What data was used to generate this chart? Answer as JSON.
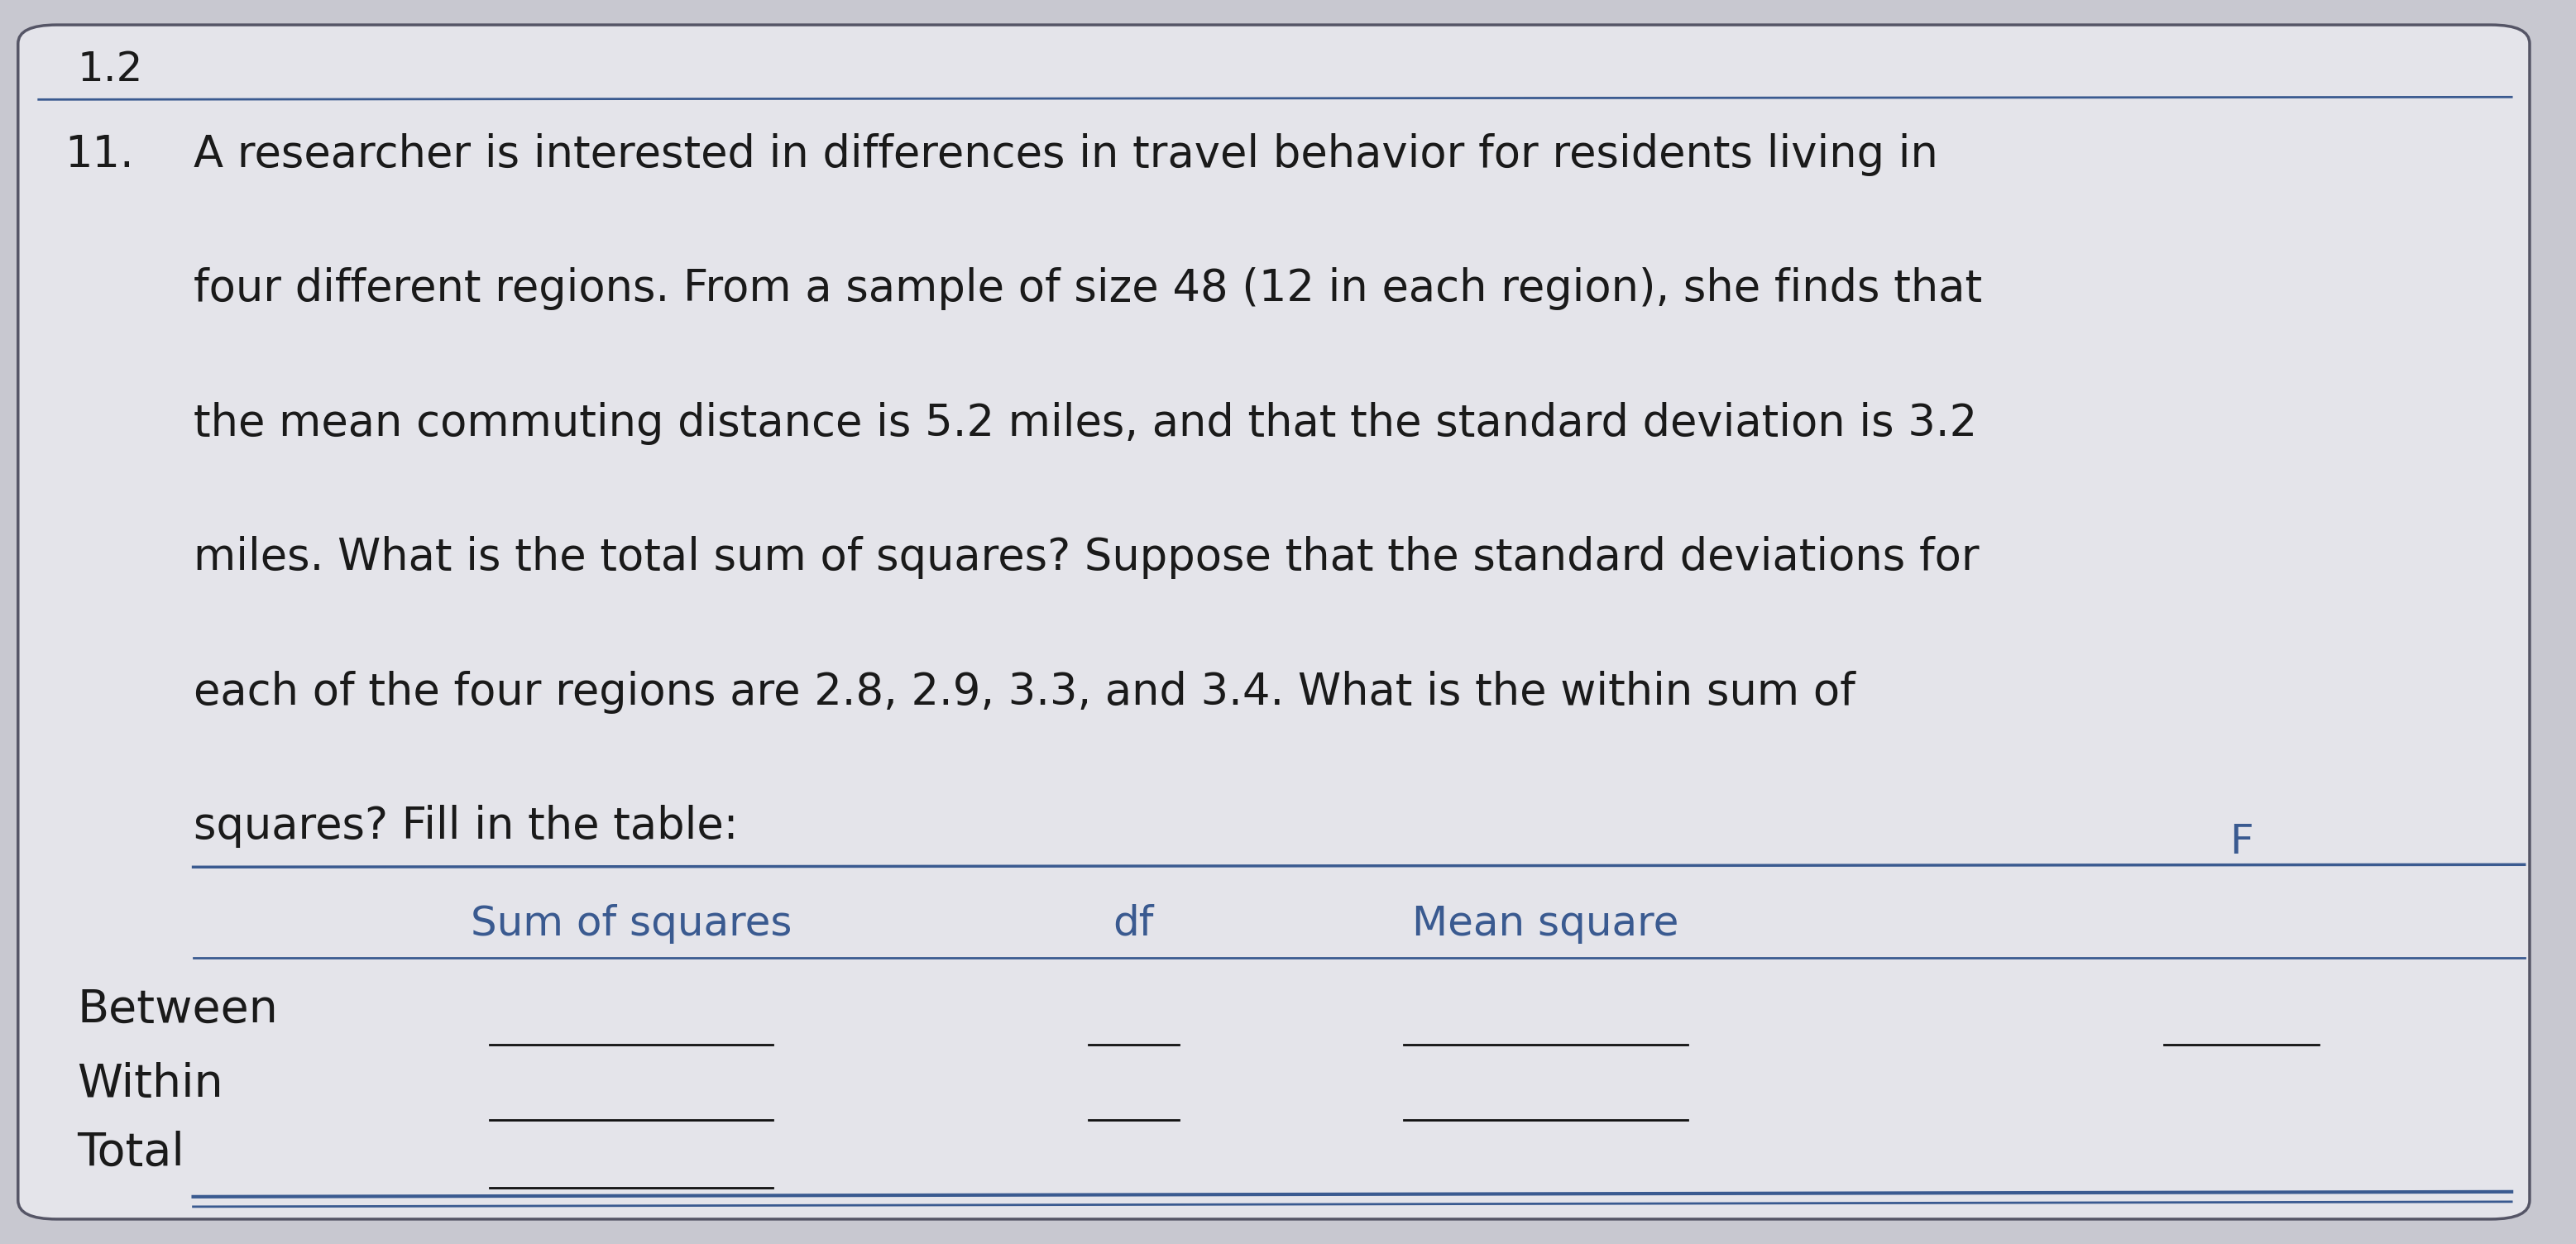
{
  "background_color": "#c8c8d0",
  "card_color": "#e4e4ea",
  "page_number": "1.2",
  "question_number": "11.",
  "question_text_lines": [
    "A researcher is interested in differences in travel behavior for residents living in",
    "four different regions. From a sample of size 48 (12 in each region), she finds that",
    "the mean commuting distance is 5.2 miles, and that the standard deviation is 3.2",
    "miles. What is the total sum of squares? Suppose that the standard deviations for",
    "each of the four regions are 2.8, 2.9, 3.3, and 3.4. What is the within sum of",
    "squares? Fill in the table:"
  ],
  "table_header": [
    "Sum of squares",
    "df",
    "Mean square",
    "F"
  ],
  "table_rows": [
    "Between",
    "Within",
    "Total"
  ],
  "text_color": "#1a1a1a",
  "header_text_color": "#3a5a90",
  "line_color": "#3a5a90",
  "blank_line_color": "#111111",
  "font_size_question": 38,
  "font_size_number": 36,
  "font_size_header": 36,
  "font_size_row": 40
}
